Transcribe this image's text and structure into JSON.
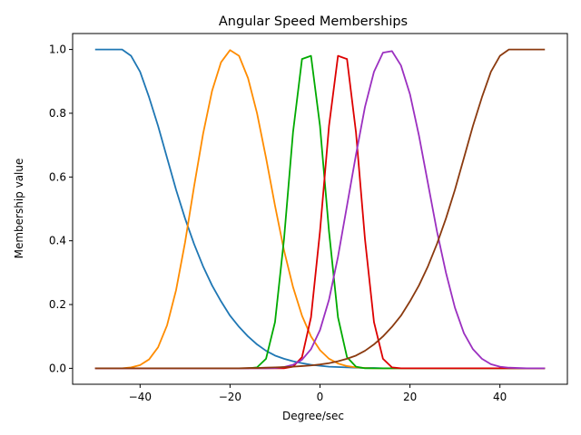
{
  "chart_data": {
    "type": "line",
    "title": "Angular Speed Memberships",
    "xlabel": "Degree/sec",
    "ylabel": "Membership value",
    "xlim": [
      -55,
      55
    ],
    "ylim": [
      -0.05,
      1.05
    ],
    "x_ticks": [
      -40,
      -20,
      0,
      20,
      40
    ],
    "x_tick_labels": [
      "−40",
      "−20",
      "0",
      "20",
      "40"
    ],
    "y_ticks": [
      0.0,
      0.2,
      0.4,
      0.6,
      0.8,
      1.0
    ],
    "y_tick_labels": [
      "0.0",
      "0.2",
      "0.4",
      "0.6",
      "0.8",
      "1.0"
    ],
    "grid": false,
    "legend": "none",
    "x": [
      -50,
      -48,
      -46,
      -44,
      -42,
      -40,
      -38,
      -36,
      -34,
      -32,
      -30,
      -28,
      -26,
      -24,
      -22,
      -20,
      -18,
      -16,
      -14,
      -12,
      -10,
      -8,
      -6,
      -4,
      -2,
      0,
      2,
      4,
      6,
      8,
      10,
      12,
      14,
      16,
      18,
      20,
      22,
      24,
      26,
      28,
      30,
      32,
      34,
      36,
      38,
      40,
      42,
      44,
      46,
      48,
      50
    ],
    "series": [
      {
        "color": "#1f77b4",
        "values": [
          1.0,
          1.0,
          1.0,
          1.0,
          0.98,
          0.93,
          0.85,
          0.76,
          0.66,
          0.56,
          0.47,
          0.39,
          0.32,
          0.26,
          0.21,
          0.165,
          0.13,
          0.1,
          0.075,
          0.055,
          0.04,
          0.03,
          0.022,
          0.016,
          0.011,
          0.008,
          0.005,
          0.004,
          0.003,
          0.002,
          0.001,
          0.001,
          0.0,
          0.0,
          0.0,
          0.0,
          0.0,
          0.0,
          0.0,
          0.0,
          0.0,
          0.0,
          0.0,
          0.0,
          0.0,
          0.0,
          0.0,
          0.0,
          0.0,
          0.0,
          0.0
        ]
      },
      {
        "color": "#ff8c00",
        "values": [
          0.0,
          0.0,
          0.0,
          0.0,
          0.003,
          0.01,
          0.028,
          0.066,
          0.135,
          0.245,
          0.395,
          0.57,
          0.735,
          0.87,
          0.96,
          0.998,
          0.98,
          0.91,
          0.8,
          0.66,
          0.51,
          0.37,
          0.255,
          0.165,
          0.1,
          0.057,
          0.03,
          0.015,
          0.007,
          0.003,
          0.001,
          0.0,
          0.0,
          0.0,
          0.0,
          0.0,
          0.0,
          0.0,
          0.0,
          0.0,
          0.0,
          0.0,
          0.0,
          0.0,
          0.0,
          0.0,
          0.0,
          0.0,
          0.0,
          0.0,
          0.0
        ]
      },
      {
        "color": "#00aa00",
        "values": [
          0.0,
          0.0,
          0.0,
          0.0,
          0.0,
          0.0,
          0.0,
          0.0,
          0.0,
          0.0,
          0.0,
          0.0,
          0.0,
          0.0,
          0.0,
          0.0,
          0.0,
          0.0,
          0.003,
          0.03,
          0.145,
          0.405,
          0.74,
          0.97,
          0.98,
          0.76,
          0.43,
          0.16,
          0.035,
          0.005,
          0.0,
          0.0,
          0.0,
          0.0,
          0.0,
          0.0,
          0.0,
          0.0,
          0.0,
          0.0,
          0.0,
          0.0,
          0.0,
          0.0,
          0.0,
          0.0,
          0.0,
          0.0,
          0.0,
          0.0,
          0.0
        ]
      },
      {
        "color": "#dd0000",
        "values": [
          0.0,
          0.0,
          0.0,
          0.0,
          0.0,
          0.0,
          0.0,
          0.0,
          0.0,
          0.0,
          0.0,
          0.0,
          0.0,
          0.0,
          0.0,
          0.0,
          0.0,
          0.0,
          0.0,
          0.0,
          0.0,
          0.0,
          0.005,
          0.035,
          0.16,
          0.43,
          0.76,
          0.98,
          0.97,
          0.74,
          0.405,
          0.145,
          0.03,
          0.003,
          0.0,
          0.0,
          0.0,
          0.0,
          0.0,
          0.0,
          0.0,
          0.0,
          0.0,
          0.0,
          0.0,
          0.0,
          0.0,
          0.0,
          0.0,
          0.0,
          0.0
        ]
      },
      {
        "color": "#9b30c0",
        "values": [
          0.0,
          0.0,
          0.0,
          0.0,
          0.0,
          0.0,
          0.0,
          0.0,
          0.0,
          0.0,
          0.0,
          0.0,
          0.0,
          0.0,
          0.0,
          0.0,
          0.0,
          0.0,
          0.0,
          0.0,
          0.001,
          0.004,
          0.011,
          0.027,
          0.06,
          0.12,
          0.215,
          0.35,
          0.51,
          0.67,
          0.82,
          0.93,
          0.99,
          0.995,
          0.95,
          0.86,
          0.73,
          0.58,
          0.43,
          0.3,
          0.19,
          0.11,
          0.06,
          0.03,
          0.013,
          0.005,
          0.002,
          0.001,
          0.0,
          0.0,
          0.0
        ]
      },
      {
        "color": "#8b3a0f",
        "values": [
          0.0,
          0.0,
          0.0,
          0.0,
          0.0,
          0.0,
          0.0,
          0.0,
          0.0,
          0.0,
          0.0,
          0.0,
          0.0,
          0.0,
          0.0,
          0.0,
          0.0,
          0.001,
          0.001,
          0.002,
          0.003,
          0.004,
          0.005,
          0.007,
          0.009,
          0.012,
          0.016,
          0.022,
          0.03,
          0.04,
          0.055,
          0.075,
          0.1,
          0.13,
          0.165,
          0.21,
          0.26,
          0.32,
          0.39,
          0.47,
          0.56,
          0.66,
          0.76,
          0.85,
          0.93,
          0.98,
          1.0,
          1.0,
          1.0,
          1.0,
          1.0
        ]
      }
    ]
  }
}
